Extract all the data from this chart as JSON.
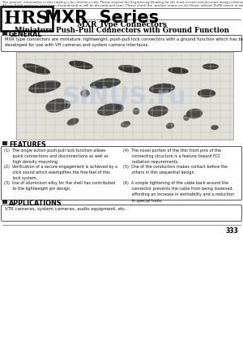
{
  "page_bg": "#ffffff",
  "header_disclaimer1": "The product  information in this catalog is for reference only. Please request the Engineering Drawing for the most current and accurate design information.",
  "header_disclaimer2": "All non-RoHS products  have been discontinued or will be discontinued soon. Please check the  product status on the Hirose website RoHS search at www.hirose-connectors.com, or contact your  Hirose sales representative.",
  "brand": "HRS",
  "series": " MXR  Series",
  "title_line1": "MXR Type Connectors",
  "title_line2": "Miniature Push-Pull Connectors with Ground Function",
  "section_general": "GENERAL",
  "general_text": "MXR type connectors are miniature, lightweight, push-pull lock connectors with a ground function which has been\ndeveloped for use with VH cameras and system camera interfaces.",
  "section_features": "FEATURES",
  "features_left": [
    "(1)  The single action push-pull lock function allows\n       quick connections and disconnections as well as\n       high density mounting.",
    "(2)  Verification of a secure engagement is achieved by a\n       click sound which exemplifies the fine feel of this\n       lock system.",
    "(3)  Use of aluminium alloy for the shell has contributed\n       to the lightweight pin design."
  ],
  "features_right": [
    "(4)  The novel portion of the thin front pins of the\n       connecting structure is a feature toward FCC\n       radiation requirements.",
    "(5)  One of the conductors makes contact before the\n       others in this sequential design.",
    "(6)  A simple tightening of the cable back around the\n       connector prevents the cable from being loosened,\n       affording an increase in workability and a reduction\n       in special tools."
  ],
  "section_applications": "APPLICATIONS",
  "applications_text": "VTR cameras, system cameras, audio equipment, etc.",
  "page_number": "333",
  "watermark": "SINUS.ru"
}
